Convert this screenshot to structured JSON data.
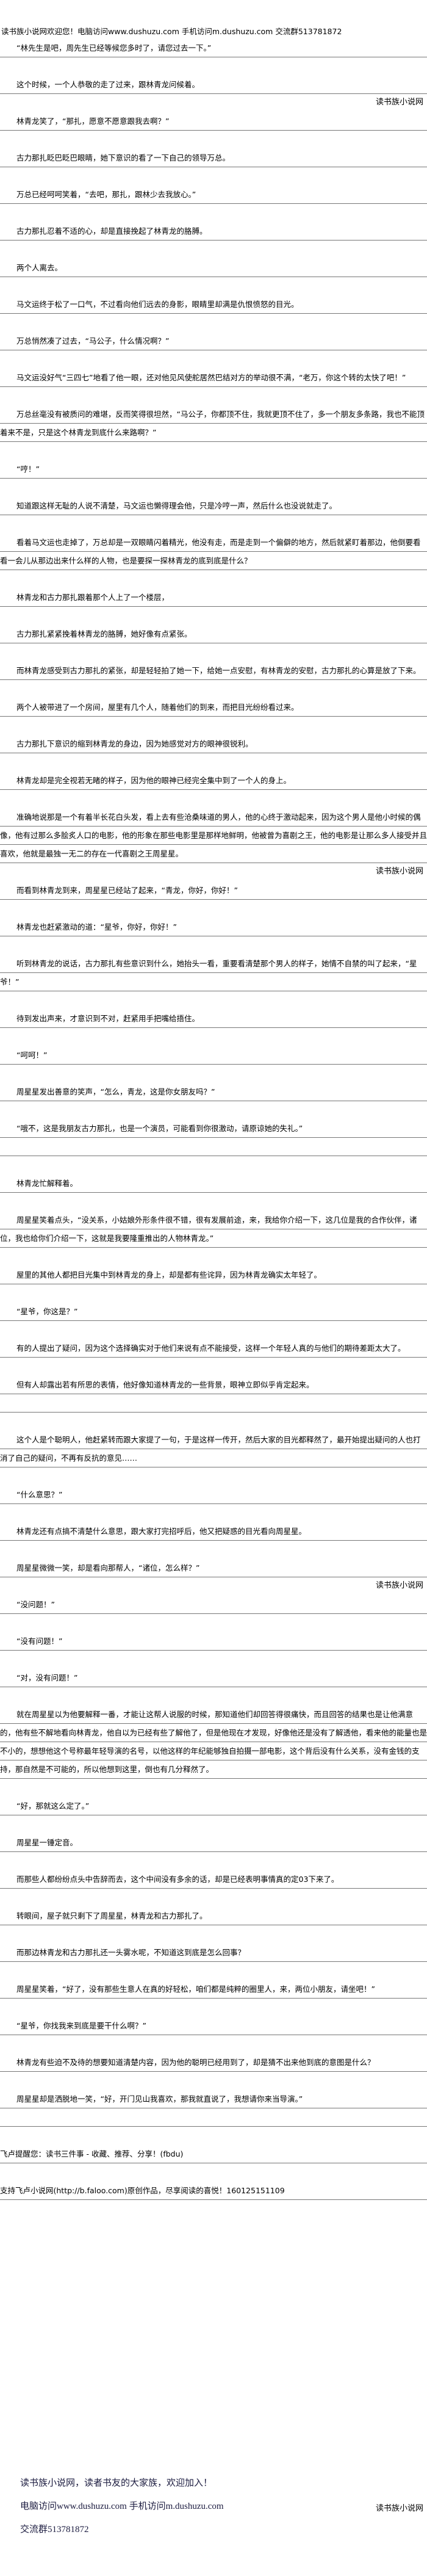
{
  "header": {
    "text": "读书族小说网欢迎您！电脑访问www.dushuzu.com 手机访问m.dushuzu.com 交流群513781872"
  },
  "watermark": "读书族小说网",
  "paragraphs": [
    "“林先生是吧，周先生已经等候您多时了，请您过去一下。”",
    "这个时候，一个人恭敬的走了过来，跟林青龙问候着。",
    "林青龙笑了，“那扎，愿意不愿意跟我去啊？”",
    "古力那扎眨巴眨巴眼睛，她下意识的看了一下自己的领导万总。",
    "万总已经呵呵笑着，“去吧，那扎，跟林少去我放心。”",
    "古力那扎忍着不适的心，却是直接挽起了林青龙的胳膊。",
    "两个人离去。",
    "马文运终于松了一口气，不过看向他们远去的身影，眼睛里却满是仇恨愤怒的目光。",
    "万总悄然凑了过去，“马公子，什么情况啊？”",
    "马文运没好气“三四七”地看了他一眼，还对他见风使舵居然巴结对方的举动很不满，“老万，你这个转的太快了吧！”",
    "万总丝毫没有被质问的难堪，反而笑得很坦然，“马公子，你都顶不住，我就更顶不住了，多一个朋友多条路，我也不能顶着来不是，只是这个林青龙到底什么来路啊？”",
    "“哼！”",
    "知道跟这样无耻的人说不清楚，马文运也懒得理会他，只是冷哼一声，然后什么也没说就走了。",
    "看着马文运也走掉了，万总却是一双眼睛闪着精光，他没有走，而是走到一个偏僻的地方，然后就紧盯着那边，他倒要看看一会儿从那边出来什么样的人物，也是要探一探林青龙的底到底是什么？",
    "林青龙和古力那扎跟着那个人上了一个楼层，",
    "古力那扎紧紧挽着林青龙的胳膊，她好像有点紧张。",
    "而林青龙感受到古力那扎的紧张，却是轻轻拍了她一下，给她一点安慰，有林青龙的安慰，古力那扎的心算是放了下来。",
    "两个人被带进了一个房间，屋里有几个人，随着他们的到来，而把目光纷纷看过来。",
    "古力那扎下意识的缩到林青龙的身边，因为她感觉对方的眼神很锐利。",
    "林青龙却是完全视若无睹的样子，因为他的眼神已经完全集中到了一个人的身上。",
    "准确地说那是一个有着半长花白头发，看上去有些沧桑味道的男人，他的心终于激动起来，因为这个男人是他小时候的偶像，他有过那么多脍炙人口的电影，他的形象在那些电影里是那样地鲜明，他被曾为喜剧之王，他的电影是让那么多人接受并且喜欢，他就是最独一无二的存在一代喜剧之王周星星。",
    "而看到林青龙到来，周星星已经站了起来，“青龙，你好，你好！”",
    "林青龙也赶紧激动的道：“星爷，你好，你好！”",
    "听到林青龙的说话，古力那扎有些意识到什么，她抬头一看，重要看清楚那个男人的样子，她情不自禁的叫了起来，“星爷！”",
    "待到发出声来，才意识到不对，赶紧用手把嘴给捂住。",
    "“呵呵！”",
    "周星星发出善意的笑声，“怎么，青龙，这是你女朋友吗？”",
    "“哦不，这是我朋友古力那扎，也是一个演员，可能看到你很激动，请原谅她的失礼。”",
    "林青龙忙解释着。",
    "周星星笑着点头，“没关系，小姑娘外形条件很不错，很有发展前途，来，我给你介绍一下，这几位是我的合作伙伴，诸位，我也给你们介绍一下，这就是我要隆重推出的人物林青龙。”",
    "屋里的其他人都把目光集中到林青龙的身上，却是都有些诧异，因为林青龙确实太年轻了。",
    "“星爷，你这是？”",
    "有的人提出了疑问，因为这个选择确实对于他们来说有点不能接受，这样一个年轻人真的与他们的期待差距太大了。",
    "但有人却露出若有所思的表情，他好像知道林青龙的一些背景，眼神立即似乎肯定起来。",
    "这个人是个聪明人，他赶紧转而跟大家提了一句，于是这样一传开，然后大家的目光都释然了，最开始提出疑问的人也打消了自己的疑问，不再有反抗的意见……",
    "“什么意思？”",
    "林青龙还有点搞不清楚什么意思，跟大家打完招呼后，他又把疑惑的目光看向周星星。",
    "周星星微微一笑，却是看向那帮人，“诸位，怎么样？”",
    "“没问题！”",
    "“没有问题！”",
    "“对，没有问题！”",
    "就在周星星以为他要解释一番，才能让这帮人说服的时候，那知道他们却回答得很痛快，而且回答的结果也是让他满意的，他有些不解地看向林青龙，他自以为已经有些了解他了，但是他现在才发现，好像他还是没有了解透他，看来他的能量也是不小的，想想他这个号称最年轻导演的名号，以他这样的年纪能够独自拍摄一部电影，这个背后没有什么关系，没有金钱的支持，那自然是不可能的，所以他想到这里，倒也有几分释然了。",
    "“好，那就这么定了。”",
    "周星星一锤定音。",
    "而那些人都纷纷点头中告辞而去，这个中间没有多余的话，却是已经表明事情真的定03下来了。",
    "转眼间，屋子就只剩下了周星星，林青龙和古力那扎了。",
    "而那边林青龙和古力那扎还一头雾水呢，不知道这到底是怎么回事？",
    "周星星笑着，“好了，没有那些生意人在真的好轻松，咱们都是纯粹的圈里人，来，两位小朋友，请坐吧！”",
    "“星爷，你找我来到底是要干什么啊？”",
    "林青龙有些迫不及待的想要知道清楚内容，因为他的聪明已经用到了，却是猜不出来他到底的意图是什么？",
    "周星星却是洒脱地一笑，“好，开门见山我喜欢，那我就直说了，我想请你来当导演。”",
    "飞卢提醒您：读书三件事 - 收藏、推荐、分享！(fbdu)",
    "支持飞卢小说网(http://b.faloo.com)原创作品，尽享阅读的喜悦！160125151109"
  ],
  "promo": {
    "line1": "读书族小说网，读者书友的大家族，欢迎加入！",
    "line2": "电脑访问www.dushuzu.com 手机访问m.dushuzu.com",
    "line3": "交流群513781872"
  }
}
